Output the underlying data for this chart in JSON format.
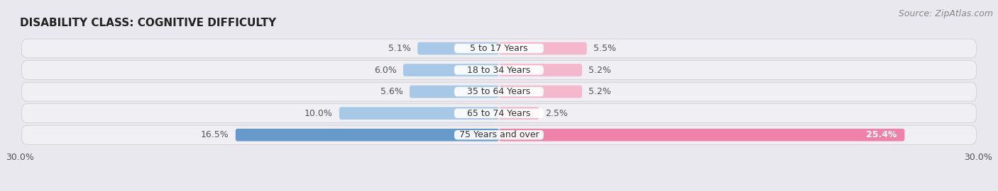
{
  "title": "DISABILITY CLASS: COGNITIVE DIFFICULTY",
  "source": "Source: ZipAtlas.com",
  "categories": [
    "5 to 17 Years",
    "18 to 34 Years",
    "35 to 64 Years",
    "65 to 74 Years",
    "75 Years and over"
  ],
  "male_values": [
    5.1,
    6.0,
    5.6,
    10.0,
    16.5
  ],
  "female_values": [
    5.5,
    5.2,
    5.2,
    2.5,
    25.4
  ],
  "xlim": 30.0,
  "male_color_light": "#a8c8e8",
  "male_color_dark": "#6699cc",
  "female_color_light": "#f4b8cc",
  "female_color_dark": "#ee82a8",
  "bg_color": "#e8e8ee",
  "row_bg_color": "#f0f0f4",
  "title_fontsize": 11,
  "source_fontsize": 9,
  "label_fontsize": 9,
  "category_fontsize": 9,
  "axis_label_fontsize": 9
}
